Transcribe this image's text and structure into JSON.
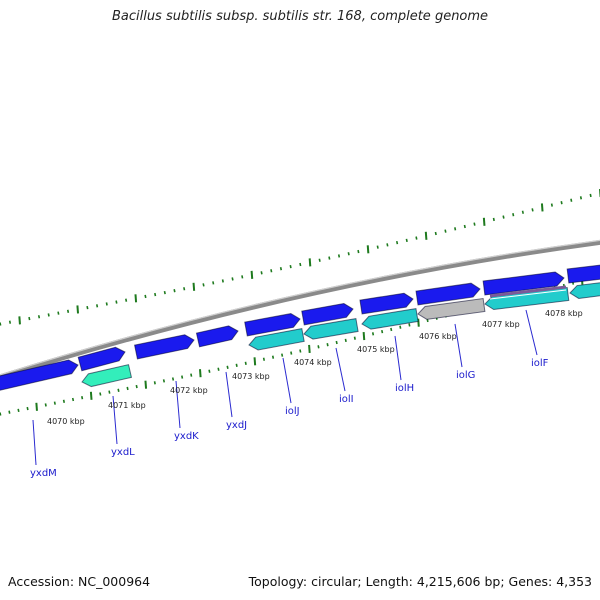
{
  "title": "Bacillus subtilis subsp. subtilis str. 168, complete genome",
  "footer": {
    "accession": "Accession: NC_000964",
    "summary": "Topology: circular; Length: 4,215,606 bp; Genes: 4,353"
  },
  "colors": {
    "backbone": "#8a8a8a",
    "ticks": "#1e7a1e",
    "gene_cds": "#1a1aee",
    "gene_rna_light": "#33eebb",
    "gene_cyan": "#22cccc",
    "gene_grey": "#bbbbbb",
    "gene_striped": "#7a5a99",
    "labels": "#1a1acc"
  },
  "scale_labels": [
    "4070 kbp",
    "4071 kbp",
    "4072 kbp",
    "4073 kbp",
    "4074 kbp",
    "4075 kbp",
    "4076 kbp",
    "4077 kbp",
    "4078 kbp"
  ],
  "genes": [
    {
      "name": "yxdM",
      "track": "forward",
      "color": "#1a1aee"
    },
    {
      "name": "yxdL",
      "track": "reverse",
      "color": "#33eebb"
    },
    {
      "name": "yxdK",
      "track": "forward",
      "color": "#1a1aee"
    },
    {
      "name": "yxdJ",
      "track": "forward",
      "color": "#1a1aee"
    },
    {
      "name": "iolJ",
      "track": "reverse",
      "color": "#22cccc"
    },
    {
      "name": "iolI",
      "track": "reverse",
      "color": "#22cccc"
    },
    {
      "name": "iolH",
      "track": "reverse",
      "color": "#22cccc"
    },
    {
      "name": "iolG",
      "track": "reverse",
      "color": "#bbbbbb"
    },
    {
      "name": "iolF",
      "track": "reverse",
      "color": "#22cccc"
    }
  ]
}
